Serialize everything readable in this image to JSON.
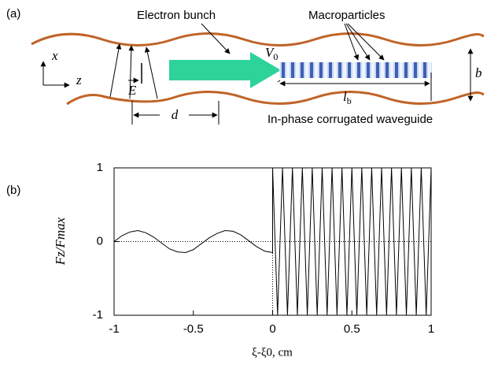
{
  "panel_a": {
    "label": "(a)",
    "bunch": "Electron bunch",
    "macro": "Macroparticles",
    "velocity": "V",
    "velocity_sub": "0",
    "length": "l",
    "length_sub": "b",
    "gap": "b",
    "period": "d",
    "field": "E",
    "axis_x": "x",
    "axis_z": "z",
    "caption": "In-phase corrugated waveguide"
  },
  "chart_data": {
    "type": "line",
    "panel_label": "(b)",
    "xlabel": "ξ-ξ0, cm",
    "ylabel": "Fz/Fmax",
    "color": "#000000",
    "xlim": [
      -1,
      1
    ],
    "ylim": [
      -1,
      1
    ],
    "xticks": [
      -1,
      -0.5,
      0,
      0.5,
      1
    ],
    "yticks": [
      -1,
      0,
      1
    ],
    "x": [
      -1,
      -0.95,
      -0.9,
      -0.85,
      -0.8,
      -0.75,
      -0.7,
      -0.65,
      -0.6,
      -0.55,
      -0.5,
      -0.45,
      -0.4,
      -0.35,
      -0.3,
      -0.25,
      -0.2,
      -0.15,
      -0.1,
      -0.05,
      0,
      0,
      0.03125,
      0.0625,
      0.09375,
      0.125,
      0.15625,
      0.1875,
      0.21875,
      0.25,
      0.28125,
      0.3125,
      0.34375,
      0.375,
      0.40625,
      0.4375,
      0.46875,
      0.5,
      0.53125,
      0.5625,
      0.59375,
      0.625,
      0.65625,
      0.6875,
      0.71875,
      0.75,
      0.78125,
      0.8125,
      0.84375,
      0.875,
      0.90625,
      0.9375,
      0.96875,
      1
    ],
    "values": [
      0,
      0.08,
      0.13,
      0.15,
      0.12,
      0.06,
      -0.02,
      -0.1,
      -0.14,
      -0.15,
      -0.11,
      -0.03,
      0.05,
      0.11,
      0.15,
      0.14,
      0.09,
      0.01,
      -0.07,
      -0.13,
      -0.15,
      1,
      -1,
      1,
      -1,
      1,
      -1,
      1,
      -1,
      1,
      -1,
      1,
      -1,
      1,
      -1,
      1,
      -1,
      1,
      -1,
      1,
      -1,
      1,
      -1,
      1,
      -1,
      1,
      -1,
      1,
      -1,
      1,
      -1,
      1,
      -1,
      1
    ]
  }
}
